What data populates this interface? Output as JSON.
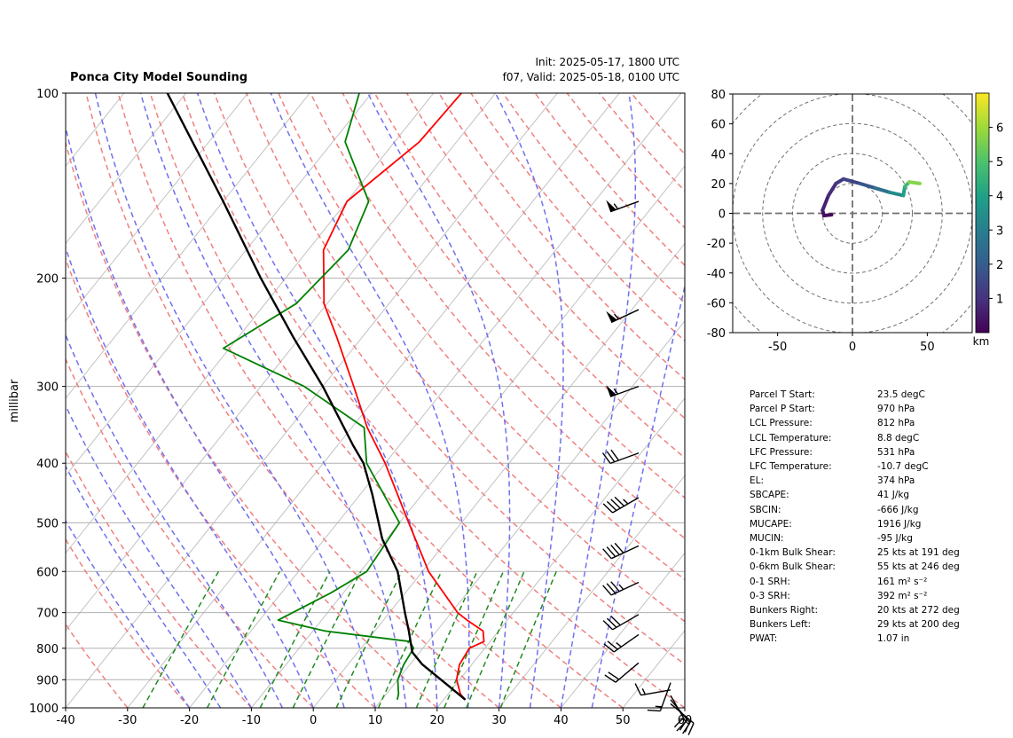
{
  "header": {
    "title": "Ponca City Model Sounding",
    "init": "Init: 2025-05-17, 1800 UTC",
    "valid": "f07, Valid: 2025-05-18, 0100 UTC"
  },
  "chart_data": [
    {
      "type": "skewt",
      "ylabel": "millibar",
      "xlim": [
        -40,
        60
      ],
      "plim": [
        1000,
        100
      ],
      "x_ticks": [
        -40,
        -30,
        -20,
        -10,
        0,
        10,
        20,
        30,
        40,
        50,
        60
      ],
      "p_ticks": [
        100,
        200,
        300,
        400,
        500,
        600,
        700,
        800,
        900,
        1000
      ],
      "colors": {
        "temperature": "#ff0000",
        "dewpoint": "#008000",
        "parcel": "#000000",
        "dry_adiabat": "#f08080",
        "moist_adiabat": "#7070ee",
        "mixing_ratio": "#228b22",
        "isotherm": "#c0c0c0"
      },
      "temperature": [
        [
          970,
          23.5
        ],
        [
          950,
          22.0
        ],
        [
          900,
          19.5
        ],
        [
          850,
          18.0
        ],
        [
          800,
          17.5
        ],
        [
          780,
          19.0
        ],
        [
          750,
          17.5
        ],
        [
          720,
          13.5
        ],
        [
          700,
          11.0
        ],
        [
          600,
          1.0
        ],
        [
          500,
          -8.5
        ],
        [
          400,
          -20.0
        ],
        [
          350,
          -27.5
        ],
        [
          300,
          -35.0
        ],
        [
          250,
          -44.0
        ],
        [
          220,
          -50.5
        ],
        [
          180,
          -57.5
        ],
        [
          150,
          -60.0
        ],
        [
          120,
          -56.0
        ],
        [
          100,
          -55.5
        ]
      ],
      "dewpoint": [
        [
          970,
          12.5
        ],
        [
          950,
          12.0
        ],
        [
          900,
          10.0
        ],
        [
          850,
          9.0
        ],
        [
          800,
          8.5
        ],
        [
          780,
          7.0
        ],
        [
          750,
          -8.0
        ],
        [
          720,
          -17.0
        ],
        [
          650,
          -12.0
        ],
        [
          600,
          -9.0
        ],
        [
          500,
          -10.0
        ],
        [
          400,
          -23.0
        ],
        [
          350,
          -28.0
        ],
        [
          300,
          -43.0
        ],
        [
          260,
          -61.0
        ],
        [
          220,
          -55.0
        ],
        [
          180,
          -53.5
        ],
        [
          150,
          -56.5
        ],
        [
          120,
          -68.0
        ],
        [
          100,
          -72.0
        ]
      ],
      "parcel": [
        [
          970,
          23.5
        ],
        [
          900,
          17.0
        ],
        [
          850,
          12.0
        ],
        [
          812,
          8.8
        ],
        [
          750,
          5.5
        ],
        [
          700,
          2.5
        ],
        [
          600,
          -4.0
        ],
        [
          531,
          -10.7
        ],
        [
          450,
          -18.0
        ],
        [
          400,
          -23.5
        ],
        [
          374,
          -27.5
        ],
        [
          300,
          -40.0
        ],
        [
          250,
          -51.0
        ],
        [
          200,
          -64.0
        ],
        [
          150,
          -80.0
        ],
        [
          100,
          -103.0
        ]
      ],
      "wind_barbs": [
        {
          "p": 150,
          "speed_kt": 55,
          "dir_deg": 250
        },
        {
          "p": 225,
          "speed_kt": 55,
          "dir_deg": 245
        },
        {
          "p": 300,
          "speed_kt": 55,
          "dir_deg": 250
        },
        {
          "p": 385,
          "speed_kt": 30,
          "dir_deg": 250
        },
        {
          "p": 455,
          "speed_kt": 45,
          "dir_deg": 240
        },
        {
          "p": 545,
          "speed_kt": 40,
          "dir_deg": 245
        },
        {
          "p": 625,
          "speed_kt": 35,
          "dir_deg": 245
        },
        {
          "p": 705,
          "speed_kt": 30,
          "dir_deg": 240
        },
        {
          "p": 760,
          "speed_kt": 25,
          "dir_deg": 235
        },
        {
          "p": 845,
          "speed_kt": 20,
          "dir_deg": 230
        },
        {
          "p": 910,
          "speed_kt": 15,
          "dir_deg": 200
        },
        {
          "p": 935,
          "speed_kt": 15,
          "dir_deg": 260
        },
        {
          "p": 955,
          "speed_kt": 20,
          "dir_deg": 150
        },
        {
          "p": 970,
          "speed_kt": 20,
          "dir_deg": 140
        },
        {
          "p": 985,
          "speed_kt": 20,
          "dir_deg": 130
        }
      ]
    },
    {
      "type": "hodograph",
      "xlim": [
        -80,
        80
      ],
      "ylim": [
        -80,
        80
      ],
      "x_ticks": [
        -50,
        0,
        50
      ],
      "y_ticks": [
        -80,
        -60,
        -40,
        -20,
        0,
        20,
        40,
        60,
        80
      ],
      "rings": [
        20,
        40,
        60,
        80,
        100
      ],
      "colorbar": {
        "label": "km",
        "ticks": [
          1,
          2,
          3,
          4,
          5,
          6
        ],
        "range": [
          0,
          7
        ]
      },
      "trace": [
        {
          "u": -14,
          "v": -1,
          "h": 0.0
        },
        {
          "u": -19,
          "v": -1.5,
          "h": 0.2
        },
        {
          "u": -20,
          "v": 2,
          "h": 0.5
        },
        {
          "u": -16,
          "v": 12,
          "h": 0.8
        },
        {
          "u": -11,
          "v": 20,
          "h": 1.0
        },
        {
          "u": -6,
          "v": 23,
          "h": 1.2
        },
        {
          "u": 5,
          "v": 20,
          "h": 1.6
        },
        {
          "u": 15,
          "v": 17,
          "h": 2.2
        },
        {
          "u": 25,
          "v": 14,
          "h": 3.0
        },
        {
          "u": 34,
          "v": 12,
          "h": 3.7
        },
        {
          "u": 35,
          "v": 18,
          "h": 4.3
        },
        {
          "u": 38,
          "v": 21,
          "h": 5.2
        },
        {
          "u": 45,
          "v": 20,
          "h": 6.2
        }
      ]
    }
  ],
  "parameters": [
    {
      "label": "Parcel T Start:",
      "value": "23.5 degC"
    },
    {
      "label": "Parcel P Start:",
      "value": "970 hPa"
    },
    {
      "label": "LCL Pressure:",
      "value": "812 hPa"
    },
    {
      "label": "LCL Temperature:",
      "value": "8.8 degC"
    },
    {
      "label": "LFC Pressure:",
      "value": "531 hPa"
    },
    {
      "label": "LFC Temperature:",
      "value": "-10.7 degC"
    },
    {
      "label": "EL:",
      "value": "374 hPa"
    },
    {
      "label": "SBCAPE:",
      "value": "41 J/kg"
    },
    {
      "label": "SBCIN:",
      "value": "-666 J/kg"
    },
    {
      "label": "MUCAPE:",
      "value": "1916 J/kg"
    },
    {
      "label": "MUCIN:",
      "value": "-95 J/kg"
    },
    {
      "label": "0-1km Bulk Shear:",
      "value": "25 kts at 191 deg"
    },
    {
      "label": "0-6km Bulk Shear:",
      "value": "55 kts at 246 deg"
    },
    {
      "label": "0-1 SRH:",
      "value": "161 m² s⁻²"
    },
    {
      "label": "0-3 SRH:",
      "value": "392 m² s⁻²"
    },
    {
      "label": "Bunkers Right:",
      "value": "20 kts at 272 deg"
    },
    {
      "label": "Bunkers Left:",
      "value": "29 kts at 200 deg"
    },
    {
      "label": "PWAT:",
      "value": "1.07 in"
    }
  ]
}
